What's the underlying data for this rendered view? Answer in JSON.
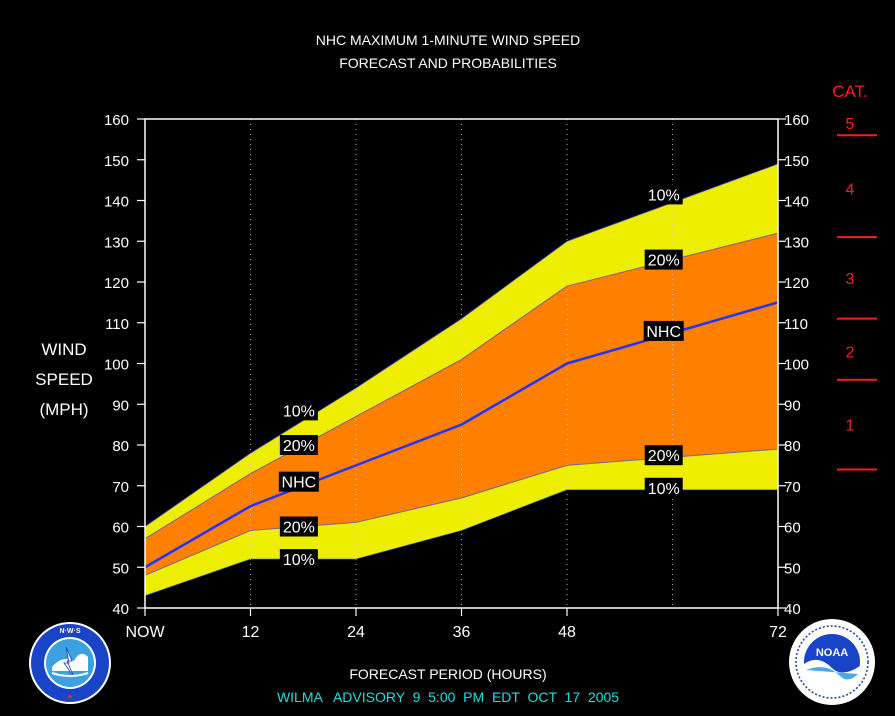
{
  "chart_data": {
    "type": "area",
    "title": "NHC MAXIMUM 1-MINUTE WIND SPEED",
    "subtitle": "FORECAST AND PROBABILITIES",
    "ylabel_lines": [
      "WIND",
      "SPEED",
      "(MPH)"
    ],
    "xlabel": "FORECAST PERIOD (HOURS)",
    "footer": "WILMA   ADVISORY  9  5:00  PM  EDT  OCT  17  2005",
    "xlim": [
      0,
      72
    ],
    "ylim": [
      40,
      160
    ],
    "x_ticks": [
      0,
      12,
      24,
      36,
      48,
      72
    ],
    "x_tick_labels": [
      "NOW",
      "12",
      "24",
      "36",
      "48",
      "72"
    ],
    "y_ticks": [
      40,
      50,
      60,
      70,
      80,
      90,
      100,
      110,
      120,
      130,
      140,
      150,
      160
    ],
    "dotted_gridlines_x": [
      12,
      24,
      36,
      48,
      60
    ],
    "x": [
      0,
      12,
      24,
      36,
      48,
      72
    ],
    "series": [
      {
        "label": "10%",
        "values": [
          60,
          78,
          94,
          111,
          130,
          149
        ],
        "kind": "upper-10"
      },
      {
        "label": "20%",
        "values": [
          57,
          73,
          87,
          101,
          119,
          132
        ],
        "kind": "upper-20"
      },
      {
        "label": "NHC",
        "values": [
          50,
          65,
          75,
          85,
          100,
          115
        ],
        "kind": "nhc"
      },
      {
        "label": "20%",
        "values": [
          48,
          59,
          61,
          67,
          75,
          79
        ],
        "kind": "lower-20"
      },
      {
        "label": "10%",
        "values": [
          43,
          52,
          52,
          59,
          69,
          69
        ],
        "kind": "lower-10"
      }
    ],
    "band_labels": [
      {
        "text": "10%",
        "x": 17.5,
        "y": 88.5
      },
      {
        "text": "20%",
        "x": 17.5,
        "y": 80
      },
      {
        "text": "NHC",
        "x": 17.5,
        "y": 71
      },
      {
        "text": "20%",
        "x": 17.5,
        "y": 60
      },
      {
        "text": "10%",
        "x": 17.5,
        "y": 52
      },
      {
        "text": "10%",
        "x": 59,
        "y": 141.5
      },
      {
        "text": "20%",
        "x": 59,
        "y": 125.5
      },
      {
        "text": "NHC",
        "x": 59,
        "y": 108
      },
      {
        "text": "20%",
        "x": 59,
        "y": 77.5
      },
      {
        "text": "10%",
        "x": 59,
        "y": 69.5
      }
    ],
    "category_scale": {
      "title": "CAT.",
      "thresholds": [
        74,
        96,
        111,
        131,
        156
      ],
      "categories": [
        {
          "label": "1",
          "y": 85
        },
        {
          "label": "2",
          "y": 103
        },
        {
          "label": "3",
          "y": 121
        },
        {
          "label": "4",
          "y": 143
        },
        {
          "label": "5",
          "y": 159
        }
      ]
    },
    "colors": {
      "background": "#000000",
      "band_10": "#eeee00",
      "band_20": "#ff8000",
      "nhc_line": "#2233ff",
      "category": "#ff1a1a",
      "footer": "#22dddd",
      "text": "#ffffff"
    }
  },
  "logos": {
    "left": {
      "name": "National Weather Service logo",
      "text": "NATIONAL WEATHER SERVICE"
    },
    "right": {
      "name": "NOAA logo",
      "text": "NOAA"
    }
  }
}
